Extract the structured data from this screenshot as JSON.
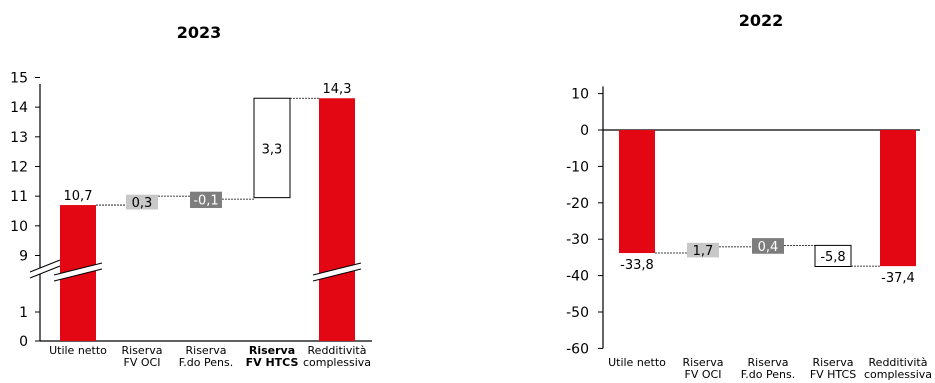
{
  "colors": {
    "increase": "#e30613",
    "total": "#e30613",
    "gray_light": "#c8c8c8",
    "gray_dark": "#7d7d7d",
    "axis": "#000000"
  },
  "chart_data": [
    {
      "type": "bar",
      "subtype": "waterfall",
      "title": "2023",
      "categories": [
        "Utile netto",
        "Riserva\nFV OCI",
        "Riserva\nF.do Pens.",
        "Riserva\nFV HTCS",
        "Redditività\ncomplessiva"
      ],
      "category_bold": [
        false,
        false,
        false,
        true,
        false
      ],
      "steps": [
        {
          "value": 10.7,
          "kind": "total",
          "label": "10,7"
        },
        {
          "value": 0.3,
          "kind": "delta-gray-light",
          "label": "0,3"
        },
        {
          "value": -0.1,
          "kind": "delta-gray-dark",
          "label": "-0,1"
        },
        {
          "value": 3.3,
          "kind": "delta-outline",
          "label": "3,3"
        },
        {
          "value": 14.3,
          "kind": "total",
          "label": "14,3"
        }
      ],
      "yticks": [
        15,
        14,
        13,
        12,
        11,
        10,
        9,
        1,
        0
      ],
      "y_axis_break": true,
      "grid": false
    },
    {
      "type": "bar",
      "subtype": "waterfall",
      "title": "2022",
      "categories": [
        "Utile netto",
        "Riserva\nFV OCI",
        "Riserva\nF.do Pens.",
        "Riserva\nFV HTCS",
        "Redditività\ncomplessiva"
      ],
      "category_bold": [
        false,
        false,
        false,
        false,
        false
      ],
      "steps": [
        {
          "value": -33.8,
          "kind": "total",
          "label": "-33,8"
        },
        {
          "value": 1.7,
          "kind": "delta-gray-light",
          "label": "1,7"
        },
        {
          "value": 0.4,
          "kind": "delta-gray-dark",
          "label": "0,4"
        },
        {
          "value": -5.8,
          "kind": "delta-outline",
          "label": "-5,8"
        },
        {
          "value": -37.4,
          "kind": "total",
          "label": "-37,4"
        }
      ],
      "yticks": [
        10,
        0,
        -10,
        -20,
        -30,
        -40,
        -50,
        -60
      ],
      "ylim": [
        -60,
        10
      ],
      "grid": false
    }
  ]
}
